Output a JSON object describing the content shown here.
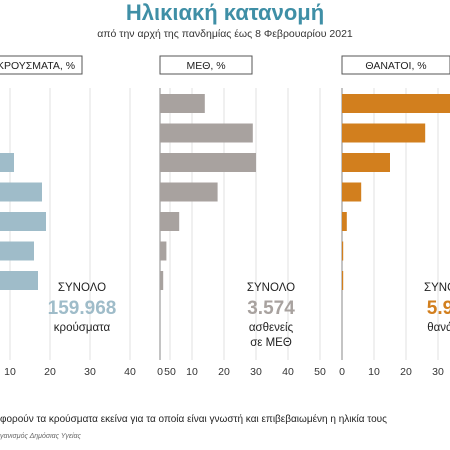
{
  "header": {
    "title": "Ηλικιακή κατανομή",
    "subtitle": "από την αρχή της πανδημίας έως 8 Φεβρουαρίου 2021"
  },
  "footer": {
    "note": "φορούν τα κρούσματα εκείνα για τα οποία είναι γνωστή και επιβεβαιωμένη η ηλικία τους",
    "source": "γανισμός Δημόσιας Υγείας"
  },
  "colors": {
    "title": "#3f8fa6",
    "cases": "#9fbcc9",
    "icu": "#a8a29f",
    "deaths": "#d27f1e"
  },
  "chart_data": [
    {
      "type": "bar",
      "orientation": "horizontal",
      "title": "ΚΡΟΥΣΜΑΤΑ, %",
      "color": "#9fbcc9",
      "values": [
        null,
        null,
        11,
        18,
        19,
        16,
        17
      ],
      "xlim": [
        0,
        50
      ],
      "xticks": [
        "10",
        "20",
        "30",
        "40",
        "50"
      ],
      "total_label": "ΣΥΝΟΛΟ",
      "total_value": "159.968",
      "total_unit_line1": "κρούσματα",
      "total_unit_line2": ""
    },
    {
      "type": "bar",
      "orientation": "horizontal",
      "title": "ΜΕΘ, %",
      "color": "#a8a29f",
      "values": [
        14,
        29,
        30,
        18,
        6,
        2,
        1
      ],
      "xlim": [
        0,
        50
      ],
      "xticks": [
        "0",
        "10",
        "20",
        "30",
        "40",
        "50"
      ],
      "total_label": "ΣΥΝΟΛΟ",
      "total_value": "3.574",
      "total_unit_line1": "ασθενείς",
      "total_unit_line2": "σε ΜΕΘ"
    },
    {
      "type": "bar",
      "orientation": "horizontal",
      "title": "ΘΑΝΑΤΟΙ, %",
      "color": "#d27f1e",
      "values": [
        35,
        26,
        15,
        6,
        1.5,
        0.3,
        0.1
      ],
      "xlim": [
        0,
        50
      ],
      "xticks": [
        "0",
        "10",
        "20",
        "30"
      ],
      "total_label": "ΣΥΝΟ",
      "total_value": "5.9",
      "total_unit_line1": "θανά",
      "total_unit_line2": ""
    }
  ]
}
